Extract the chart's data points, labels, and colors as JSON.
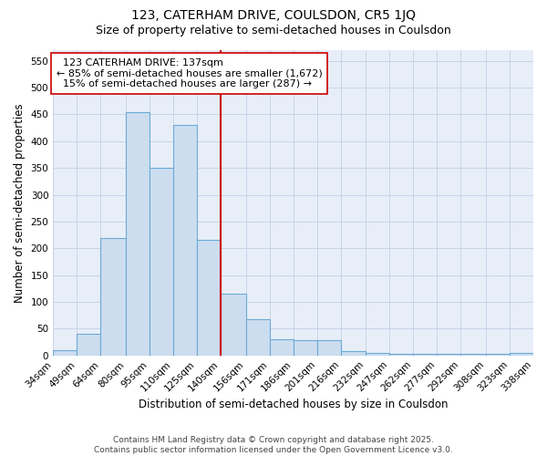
{
  "title_line1": "123, CATERHAM DRIVE, COULSDON, CR5 1JQ",
  "title_line2": "Size of property relative to semi-detached houses in Coulsdon",
  "xlabel": "Distribution of semi-detached houses by size in Coulsdon",
  "ylabel": "Number of semi-detached properties",
  "bar_left_edges": [
    34,
    49,
    64,
    80,
    95,
    110,
    125,
    140,
    156,
    171,
    186,
    201,
    216,
    232,
    247,
    262,
    277,
    292,
    308,
    323
  ],
  "bar_widths": [
    15,
    15,
    16,
    15,
    15,
    15,
    15,
    16,
    15,
    15,
    15,
    15,
    16,
    15,
    15,
    15,
    15,
    16,
    15,
    15
  ],
  "bar_heights": [
    10,
    40,
    220,
    455,
    350,
    430,
    215,
    115,
    68,
    30,
    28,
    28,
    8,
    4,
    3,
    3,
    3,
    3,
    3,
    4
  ],
  "bar_color": "#ccddf0",
  "bar_edge_color": "#6aaad4",
  "grid_color": "#c8d4e8",
  "background_color": "#e8eef8",
  "vline_x": 140,
  "vline_color": "#cc0000",
  "annotation_text": "  123 CATERHAM DRIVE: 137sqm\n← 85% of semi-detached houses are smaller (1,672)\n  15% of semi-detached houses are larger (287) →",
  "annotation_box_color": "#ffffff",
  "annotation_border_color": "#cc0000",
  "ylim": [
    0,
    570
  ],
  "yticks": [
    0,
    50,
    100,
    150,
    200,
    250,
    300,
    350,
    400,
    450,
    500,
    550
  ],
  "tick_labels": [
    "34sqm",
    "49sqm",
    "64sqm",
    "80sqm",
    "95sqm",
    "110sqm",
    "125sqm",
    "140sqm",
    "156sqm",
    "171sqm",
    "186sqm",
    "201sqm",
    "216sqm",
    "232sqm",
    "247sqm",
    "262sqm",
    "277sqm",
    "292sqm",
    "308sqm",
    "323sqm",
    "338sqm"
  ],
  "footer_text": "Contains HM Land Registry data © Crown copyright and database right 2025.\nContains public sector information licensed under the Open Government Licence v3.0.",
  "title_fontsize": 10,
  "subtitle_fontsize": 9,
  "axis_label_fontsize": 8.5,
  "tick_fontsize": 7.5,
  "annotation_fontsize": 8,
  "footer_fontsize": 6.5
}
